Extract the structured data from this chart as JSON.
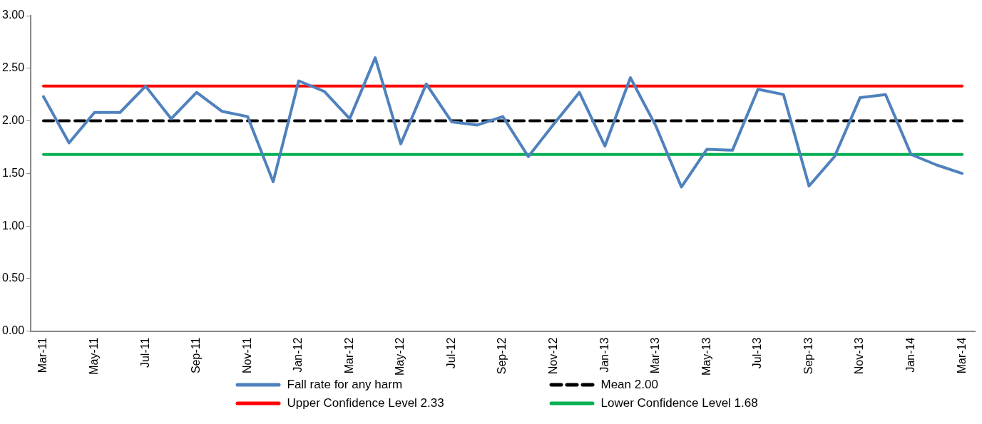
{
  "chart_data": {
    "type": "line",
    "categories": [
      "Mar-11",
      null,
      "May-11",
      null,
      "Jul-11",
      null,
      "Sep-11",
      null,
      "Nov-11",
      null,
      "Jan-12",
      null,
      "Mar-12",
      null,
      "May-12",
      null,
      "Jul-12",
      null,
      "Sep-12",
      null,
      "Nov-12",
      null,
      "Jan-13",
      null,
      "Mar-13",
      null,
      "May-13",
      null,
      "Jul-13",
      null,
      "Sep-13",
      null,
      "Nov-13",
      null,
      "Jan-14",
      null,
      "Mar-14"
    ],
    "series": [
      {
        "name": "Fall rate for any harm",
        "color": "#4f81bd",
        "line_style": "solid",
        "values": [
          2.23,
          1.79,
          2.08,
          2.08,
          2.33,
          2.02,
          2.27,
          2.09,
          2.04,
          1.42,
          2.38,
          2.28,
          2.02,
          2.6,
          1.78,
          2.35,
          1.99,
          1.96,
          2.04,
          1.66,
          1.97,
          2.27,
          1.76,
          2.41,
          1.95,
          1.37,
          1.73,
          1.72,
          2.3,
          2.25,
          1.38,
          1.66,
          2.22,
          2.25,
          1.68,
          1.58,
          1.5
        ]
      },
      {
        "name": "Mean 2.00",
        "color": "#000000",
        "line_style": "dashed",
        "values": [
          2,
          2,
          2,
          2,
          2,
          2,
          2,
          2,
          2,
          2,
          2,
          2,
          2,
          2,
          2,
          2,
          2,
          2,
          2,
          2,
          2,
          2,
          2,
          2,
          2,
          2,
          2,
          2,
          2,
          2,
          2,
          2,
          2,
          2,
          2,
          2,
          2
        ]
      },
      {
        "name": "Upper Confidence Level 2.33",
        "color": "#ff0000",
        "line_style": "solid",
        "values": [
          2.33,
          2.33,
          2.33,
          2.33,
          2.33,
          2.33,
          2.33,
          2.33,
          2.33,
          2.33,
          2.33,
          2.33,
          2.33,
          2.33,
          2.33,
          2.33,
          2.33,
          2.33,
          2.33,
          2.33,
          2.33,
          2.33,
          2.33,
          2.33,
          2.33,
          2.33,
          2.33,
          2.33,
          2.33,
          2.33,
          2.33,
          2.33,
          2.33,
          2.33,
          2.33,
          2.33,
          2.33
        ]
      },
      {
        "name": "Lower Confidence Level 1.68",
        "color": "#00b050",
        "line_style": "solid",
        "values": [
          1.68,
          1.68,
          1.68,
          1.68,
          1.68,
          1.68,
          1.68,
          1.68,
          1.68,
          1.68,
          1.68,
          1.68,
          1.68,
          1.68,
          1.68,
          1.68,
          1.68,
          1.68,
          1.68,
          1.68,
          1.68,
          1.68,
          1.68,
          1.68,
          1.68,
          1.68,
          1.68,
          1.68,
          1.68,
          1.68,
          1.68,
          1.68,
          1.68,
          1.68,
          1.68,
          1.68,
          1.68
        ]
      }
    ],
    "ylim": [
      0,
      3
    ],
    "yticks": [
      {
        "value": 0,
        "label": "0.00"
      },
      {
        "value": 0.5,
        "label": "0.50"
      },
      {
        "value": 1,
        "label": "1.00"
      },
      {
        "value": 1.5,
        "label": "1.50"
      },
      {
        "value": 2,
        "label": "2.00"
      },
      {
        "value": 2.5,
        "label": "2.50"
      },
      {
        "value": 3,
        "label": "3.00"
      }
    ],
    "grid": false,
    "legend": "bottom",
    "marker": "none"
  }
}
